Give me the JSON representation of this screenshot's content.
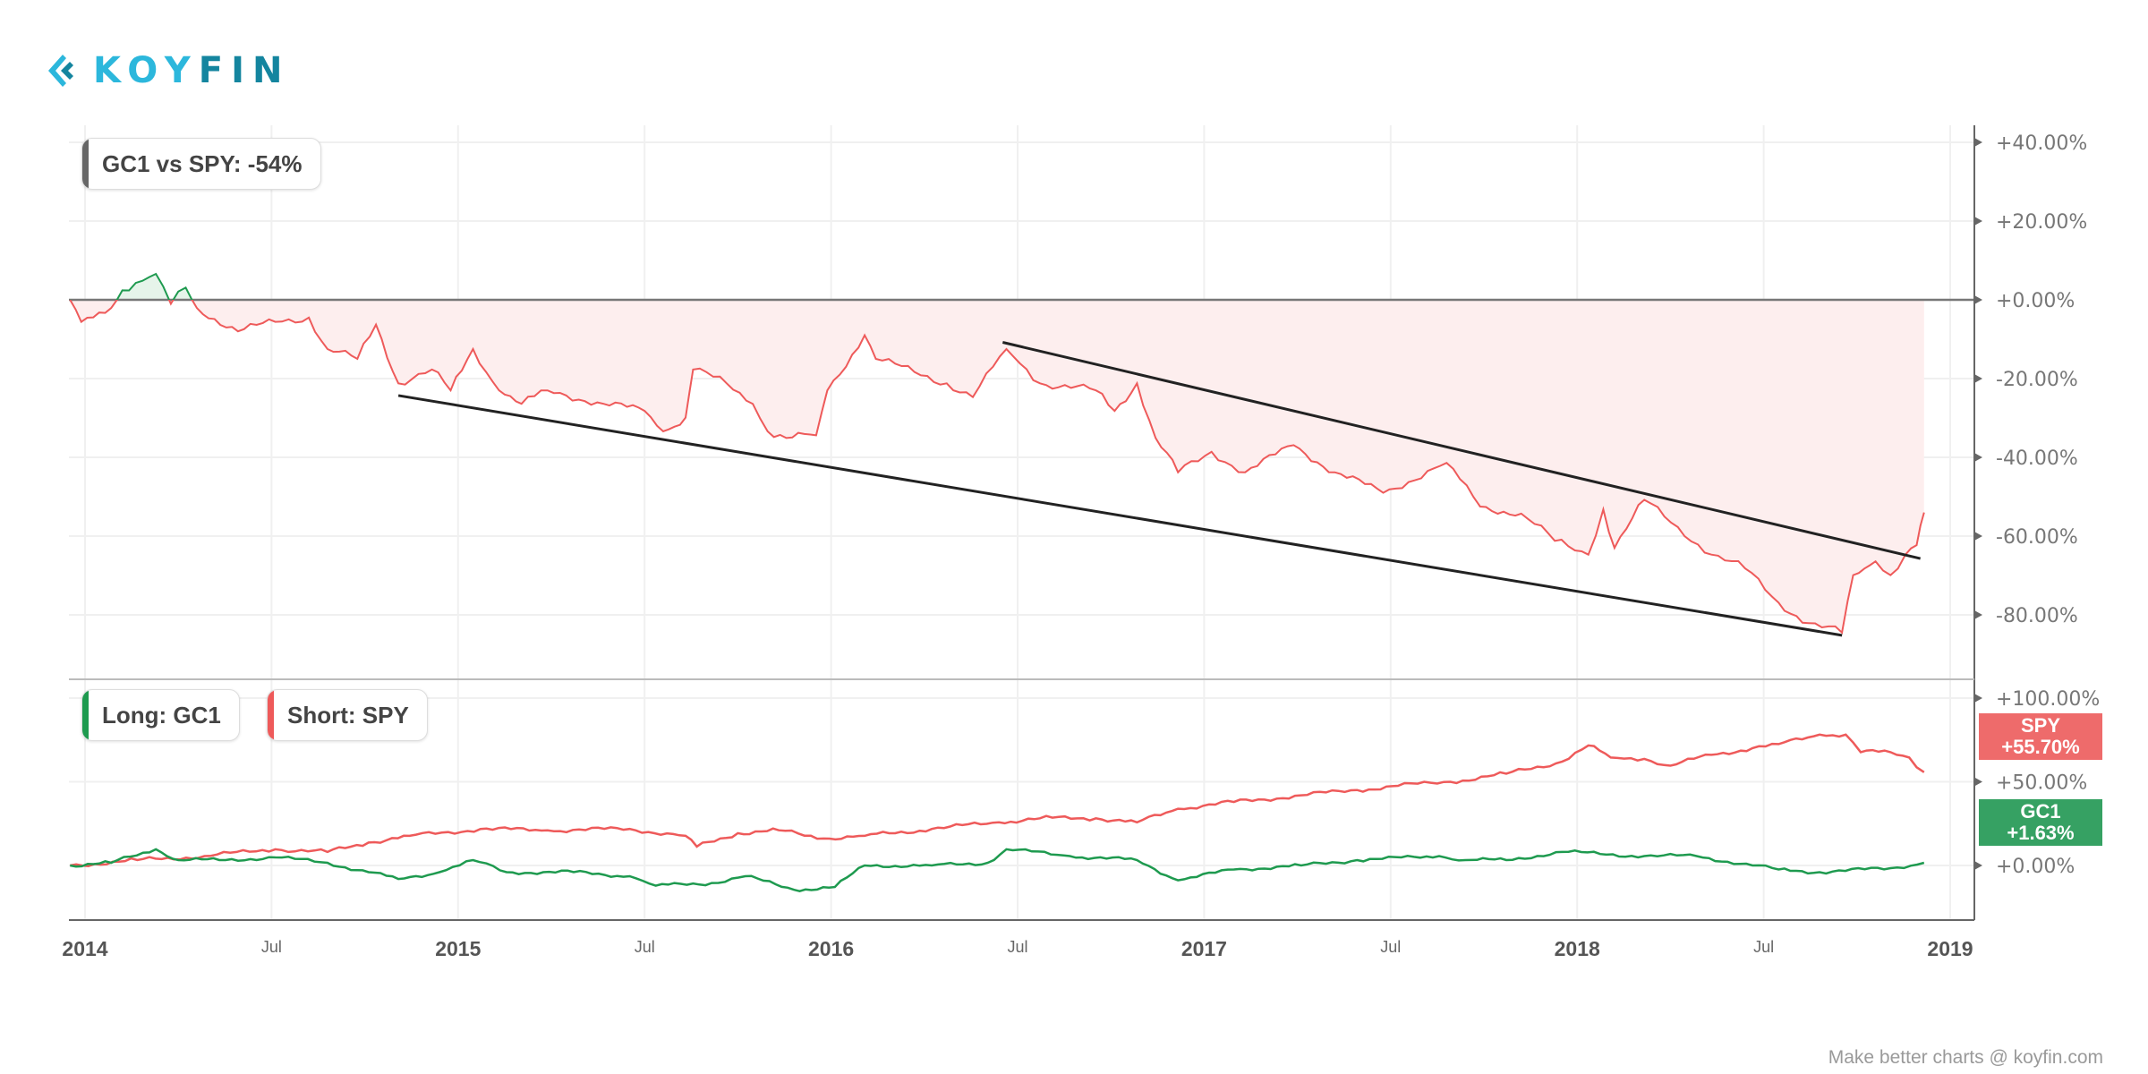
{
  "brand": {
    "name_light": "KOY",
    "name_dark": "FIN"
  },
  "footer": "Make better charts @ koyfin.com",
  "colors": {
    "red": "#ee5a5a",
    "green": "#1e9a4f",
    "fill_red": "#fdeeee",
    "fill_green": "#e6f4ea",
    "spy_label": "#ee6b6b",
    "gc1_label": "#36a163",
    "trend": "#222222"
  },
  "chart_data": [
    {
      "type": "area",
      "title": "GC1 vs SPY: -54%",
      "ylim": [
        -95,
        45
      ],
      "yticks": [
        40,
        20,
        0,
        -20,
        -40,
        -60,
        -80
      ],
      "ytick_labels": [
        "+40.00%",
        "+20.00%",
        "+0.00%",
        "-20.00%",
        "-40.00%",
        "-60.00%",
        "-80.00%"
      ],
      "series": [
        {
          "name": "GC1 vs SPY",
          "x": [
            2013.96,
            2013.99,
            2014.07,
            2014.1,
            2014.19,
            2014.23,
            2014.27,
            2014.3,
            2014.41,
            2014.51,
            2014.6,
            2014.65,
            2014.73,
            2014.78,
            2014.84,
            2014.93,
            2014.98,
            2015.04,
            2015.11,
            2015.17,
            2015.24,
            2015.39,
            2015.5,
            2015.55,
            2015.61,
            2015.63,
            2015.72,
            2015.79,
            2015.83,
            2015.88,
            2015.96,
            2015.99,
            2016.09,
            2016.12,
            2016.31,
            2016.38,
            2016.47,
            2016.56,
            2016.71,
            2016.76,
            2016.82,
            2016.87,
            2016.93,
            2017.02,
            2017.11,
            2017.24,
            2017.35,
            2017.48,
            2017.65,
            2017.74,
            2017.85,
            2017.94,
            2018.03,
            2018.07,
            2018.1,
            2018.18,
            2018.27,
            2018.36,
            2018.45,
            2018.54,
            2018.62,
            2018.71,
            2018.74,
            2018.8,
            2018.84,
            2018.88,
            2018.91,
            2018.93
          ],
          "y": [
            0,
            -5.6,
            -2.1,
            2.4,
            6.6,
            -1,
            3.1,
            -2.1,
            -8,
            -5.6,
            -4.5,
            -12.5,
            -15,
            -6.3,
            -21.2,
            -17.7,
            -23,
            -12.5,
            -23,
            -26.4,
            -23,
            -26.4,
            -28.2,
            -33.4,
            -29.9,
            -17.7,
            -21.2,
            -26.4,
            -33.4,
            -35.1,
            -34.4,
            -23,
            -9,
            -15,
            -21.2,
            -24.7,
            -12.5,
            -21.2,
            -23,
            -28.2,
            -21.2,
            -35.1,
            -43.8,
            -38.6,
            -43.8,
            -36.9,
            -43.8,
            -49,
            -41.4,
            -52.5,
            -54.3,
            -61.2,
            -64.7,
            -53.2,
            -63,
            -50.8,
            -57.7,
            -64.7,
            -68.2,
            -76.9,
            -82.1,
            -84.5,
            -69.9,
            -66.4,
            -69.9,
            -64.7,
            -62.3,
            -54
          ]
        }
      ],
      "trendlines": [
        {
          "x": [
            2014.84,
            2018.71
          ],
          "y": [
            -24.3,
            -85.2
          ]
        },
        {
          "x": [
            2016.46,
            2018.92
          ],
          "y": [
            -10.8,
            -65.7
          ]
        }
      ]
    },
    {
      "type": "line",
      "ylim": [
        -25,
        110
      ],
      "yticks": [
        100,
        50,
        0
      ],
      "ytick_labels": [
        "+100.00%",
        "+50.00%",
        "+0.00%"
      ],
      "legend": [
        "Long: GC1",
        "Short: SPY"
      ],
      "series": [
        {
          "name": "SPY",
          "last_label": "+55.70%",
          "x": [
            2013.96,
            2014.14,
            2014.32,
            2014.51,
            2014.65,
            2014.76,
            2014.87,
            2015.06,
            2015.24,
            2015.46,
            2015.61,
            2015.64,
            2015.75,
            2015.86,
            2015.98,
            2016.09,
            2016.27,
            2016.45,
            2016.56,
            2016.71,
            2016.82,
            2016.93,
            2017.08,
            2017.26,
            2017.41,
            2017.52,
            2017.66,
            2017.81,
            2017.96,
            2018.03,
            2018.09,
            2018.18,
            2018.25,
            2018.36,
            2018.47,
            2018.54,
            2018.65,
            2018.72,
            2018.76,
            2018.84,
            2018.89,
            2018.93
          ],
          "y": [
            0,
            3.2,
            5.6,
            9.7,
            8.1,
            13.7,
            17.7,
            21.8,
            21,
            21.8,
            17.7,
            11.3,
            19.3,
            21,
            16.1,
            17.7,
            21.8,
            25.8,
            28.2,
            28.2,
            25.8,
            33.9,
            37.9,
            41.9,
            45.1,
            47.6,
            50,
            54.8,
            62.1,
            71.7,
            64.5,
            63.7,
            59.6,
            66.1,
            70.1,
            72.5,
            78.2,
            78.2,
            67.7,
            67.7,
            64.5,
            55.7
          ]
        },
        {
          "name": "GC1",
          "last_label": "+1.63%",
          "x": [
            2013.96,
            2014.07,
            2014.19,
            2014.25,
            2014.36,
            2014.51,
            2014.65,
            2014.76,
            2014.84,
            2014.95,
            2015.04,
            2015.13,
            2015.31,
            2015.46,
            2015.53,
            2015.68,
            2015.77,
            2015.9,
            2016.01,
            2016.09,
            2016.27,
            2016.42,
            2016.47,
            2016.64,
            2016.82,
            2016.93,
            2017.08,
            2017.26,
            2017.41,
            2017.63,
            2017.7,
            2017.81,
            2017.96,
            2018.18,
            2018.32,
            2018.47,
            2018.54,
            2018.65,
            2018.84,
            2018.93
          ],
          "y": [
            0,
            1.6,
            9.7,
            3.2,
            3.2,
            4.8,
            1.6,
            -4,
            -8.1,
            -4,
            3.2,
            -4,
            -4,
            -6.4,
            -12.1,
            -10.5,
            -6.4,
            -14.5,
            -12.9,
            0,
            0,
            1.6,
            9.7,
            5.6,
            3.2,
            -8.9,
            -2.4,
            0,
            3.2,
            5.6,
            3.2,
            3.2,
            8.1,
            5.6,
            5.6,
            0,
            -2.4,
            -4,
            -1.6,
            1.63
          ]
        }
      ]
    }
  ],
  "xaxis": {
    "ticks": [
      {
        "x": 2014,
        "label": "2014",
        "major": true
      },
      {
        "x": 2014.5,
        "label": "Jul"
      },
      {
        "x": 2015,
        "label": "2015",
        "major": true
      },
      {
        "x": 2015.5,
        "label": "Jul"
      },
      {
        "x": 2016,
        "label": "2016",
        "major": true
      },
      {
        "x": 2016.5,
        "label": "Jul"
      },
      {
        "x": 2017,
        "label": "2017",
        "major": true
      },
      {
        "x": 2017.5,
        "label": "Jul"
      },
      {
        "x": 2018,
        "label": "2018",
        "major": true
      },
      {
        "x": 2018.5,
        "label": "Jul"
      },
      {
        "x": 2019,
        "label": "2019",
        "major": true
      }
    ]
  }
}
